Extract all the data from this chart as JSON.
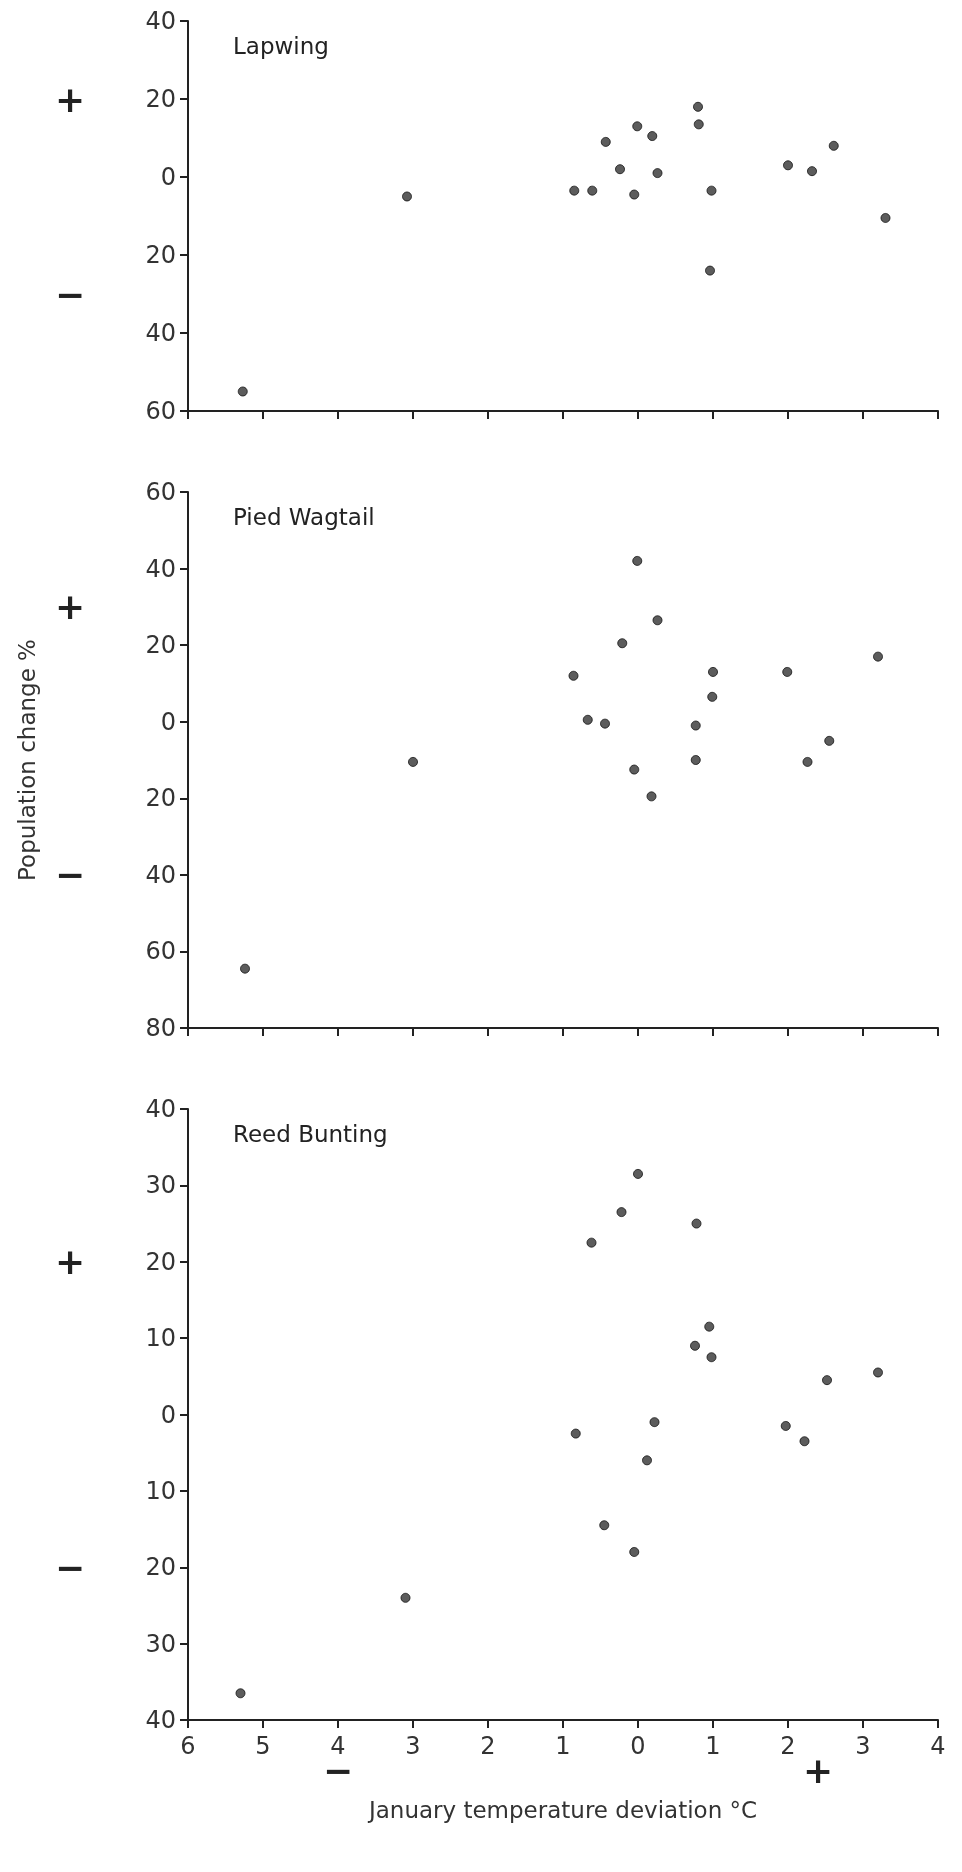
{
  "chart_data": [
    {
      "type": "scatter",
      "title": "Lapwing",
      "marker": "circle",
      "color": "#333333",
      "tick_labels": "y",
      "x": [
        -5.27,
        -3.08,
        -0.85,
        -0.61,
        -0.43,
        -0.24,
        -0.05,
        -0.01,
        0.19,
        0.26,
        0.8,
        0.81,
        0.98,
        0.96,
        2.0,
        2.32,
        2.61,
        3.3
      ],
      "values": [
        -55,
        -5,
        -3.5,
        -3.5,
        9,
        2,
        -4.5,
        13,
        10.5,
        1,
        18,
        13.5,
        -3.5,
        -24,
        3,
        1.5,
        8,
        -10.5
      ],
      "xlim": [
        -6,
        4
      ],
      "xticks": [
        -6,
        -5,
        -4,
        -3,
        -2,
        -1,
        0,
        1,
        2,
        3,
        4
      ],
      "ylim": [
        -60,
        40
      ],
      "yticks": [
        {
          "value": -60,
          "label": "60"
        },
        {
          "value": -40,
          "label": "40"
        },
        {
          "value": -20,
          "label": "20"
        },
        0,
        20,
        40
      ],
      "annotations": [
        "+",
        "−"
      ]
    },
    {
      "type": "scatter",
      "title": "Pied Wagtail",
      "marker": "circle",
      "color": "#333333",
      "tick_labels": "y",
      "ylabel": "Population change %",
      "x": [
        -5.24,
        -3.0,
        -0.86,
        -0.67,
        -0.44,
        -0.21,
        -0.05,
        -0.01,
        0.18,
        0.26,
        0.77,
        0.77,
        0.99,
        1.0,
        1.99,
        2.26,
        2.55,
        3.2
      ],
      "values": [
        -64.5,
        -10.5,
        12,
        0.5,
        -0.5,
        20.5,
        -12.5,
        42,
        -19.5,
        26.5,
        -1,
        -10,
        6.5,
        13,
        13,
        -10.5,
        -5,
        17
      ],
      "xlim": [
        -6,
        4
      ],
      "xticks": [
        -6,
        -5,
        -4,
        -3,
        -2,
        -1,
        0,
        1,
        2,
        3,
        4
      ],
      "ylim": [
        -80,
        60
      ],
      "yticks": [
        {
          "value": -80,
          "label": "80"
        },
        {
          "value": -60,
          "label": "60"
        },
        {
          "value": -40,
          "label": "40"
        },
        {
          "value": -20,
          "label": "20"
        },
        0,
        20,
        40,
        60
      ],
      "annotations": [
        "+",
        "−"
      ]
    },
    {
      "type": "scatter",
      "title": "Reed Bunting",
      "marker": "circle",
      "color": "#333333",
      "xlabel": "January temperature deviation °C",
      "x": [
        -5.3,
        -3.1,
        -0.83,
        -0.62,
        -0.45,
        -0.22,
        -0.05,
        0.0,
        0.12,
        0.22,
        0.76,
        0.78,
        0.95,
        0.98,
        1.97,
        2.22,
        2.52,
        3.2
      ],
      "values": [
        -36.5,
        -24,
        -2.5,
        22.5,
        -14.5,
        26.5,
        -18,
        31.5,
        -6,
        -1,
        9,
        25,
        11.5,
        7.5,
        -1.5,
        -3.5,
        4.5,
        5.5
      ],
      "xlim": [
        -6,
        4
      ],
      "xticks": [
        {
          "value": -6,
          "label": "6"
        },
        {
          "value": -5,
          "label": "5"
        },
        {
          "value": -4,
          "label": "4"
        },
        {
          "value": -3,
          "label": "3"
        },
        {
          "value": -2,
          "label": "2"
        },
        {
          "value": -1,
          "label": "1"
        },
        0,
        1,
        2,
        3,
        4
      ],
      "ylim": [
        -40,
        40
      ],
      "yticks": [
        {
          "value": -40,
          "label": "40"
        },
        {
          "value": -30,
          "label": "30"
        },
        {
          "value": -20,
          "label": "20"
        },
        {
          "value": -10,
          "label": "10"
        },
        0,
        10,
        20,
        30,
        40
      ],
      "annotations": [
        "+",
        "−",
        "−",
        "+"
      ]
    }
  ]
}
